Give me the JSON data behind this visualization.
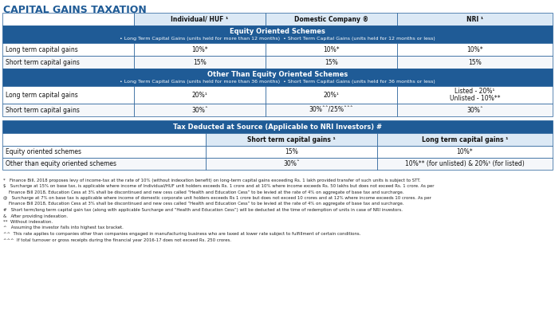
{
  "title": "CAPITAL GAINS TAXATION",
  "title_color": "#1f5b96",
  "title_fontsize": 9,
  "header_bg": "#1f5b96",
  "header_text_color": "#ffffff",
  "col_header_bg": "#dce9f5",
  "border_color": "#1f5b96",
  "white": "#ffffff",
  "footnote_color": "#222222",
  "table1_col_headers": [
    "",
    "Individual/ HUF ¹",
    "Domestic Company ®",
    "NRI ¹"
  ],
  "equity_title": "Equity Oriented Schemes",
  "equity_subtitle": "• Long Term Capital Gains (units held for more than 12 months)  • Short Term Capital Gains (units held for 12 months or less)",
  "equity_rows": [
    [
      "Long term capital gains",
      "10%*",
      "10%*",
      "10%*"
    ],
    [
      "Short term capital gains",
      "15%",
      "15%",
      "15%"
    ]
  ],
  "other_title": "Other Than Equity Oriented Schemes",
  "other_subtitle": "• Long Term Capital Gains (units held for more than 36 months)  • Short Term Capital Gains (units held for 36 months or less)",
  "other_rows": [
    [
      "Long term capital gains",
      "20%¹",
      "20%¹",
      "Listed - 20%¹\nUnlisted - 10%**"
    ],
    [
      "Short term capital gains",
      "30%ˆ",
      "30%ˆˆ/25%ˆˆˆ",
      "30%ˆ"
    ]
  ],
  "tds_title": "Tax Deducted at Source (Applicable to NRI Investors) #",
  "tds_col_headers": [
    "",
    "Short term capital gains ¹",
    "Long term capital gains ¹"
  ],
  "tds_rows": [
    [
      "Equity oriented schemes",
      "15%",
      "10%*"
    ],
    [
      "Other than equity oriented schemes",
      "30%ˆ",
      "10%** (for unlisted) & 20%¹ (for listed)"
    ]
  ],
  "footnotes": [
    [
      "*",
      "Finance Bill, 2018 proposes levy of income-tax at the rate of 10% (without indexation benefit) on long-term capital gains exceeding Rs. 1 lakh provided transfer of such units is subject to STT."
    ],
    [
      "$",
      "Surcharge at 15% on base tax, is applicable where income of Individual/HUF unit holders exceeds Rs. 1 crore and at 10% where income exceeds Rs. 50 lakhs but does not exceed Rs. 1 crore. As per\n    Finance Bill 2018, Education Cess at 3% shall be discontinued and new cess called “Health and Education Cess” to be levied at the rate of 4% on aggregate of base tax and surcharge."
    ],
    [
      "@",
      "Surcharge at 7% on base tax is applicable where income of domestic corporate unit holders exceeds Rs 1 crore but does not exceed 10 crores and at 12% where income exceeds 10 crores. As per\n    Finance Bill 2018, Education Cess at 3% shall be discontinued and new cess called “Health and Education Cess” to be levied at the rate of 4% on aggregate of base tax and surcharge."
    ],
    [
      "#",
      "Short term/long term capital gain tax (along with applicable Surcharge and “Health and Education Cess”) will be deducted at the time of redemption of units in case of NRI investors."
    ],
    [
      "&",
      "After providing indexation."
    ],
    [
      "**",
      "Without indexation."
    ],
    [
      "^",
      "Assuming the investor falls into highest tax bracket."
    ],
    [
      "^^",
      "This rate applies to companies other than companies engaged in manufacturing business who are taxed at lower rate subject to fulfillment of certain conditions."
    ],
    [
      "^^^",
      "If total turnover or gross receipts during the financial year 2016-17 does not exceed Rs. 250 crores."
    ]
  ]
}
